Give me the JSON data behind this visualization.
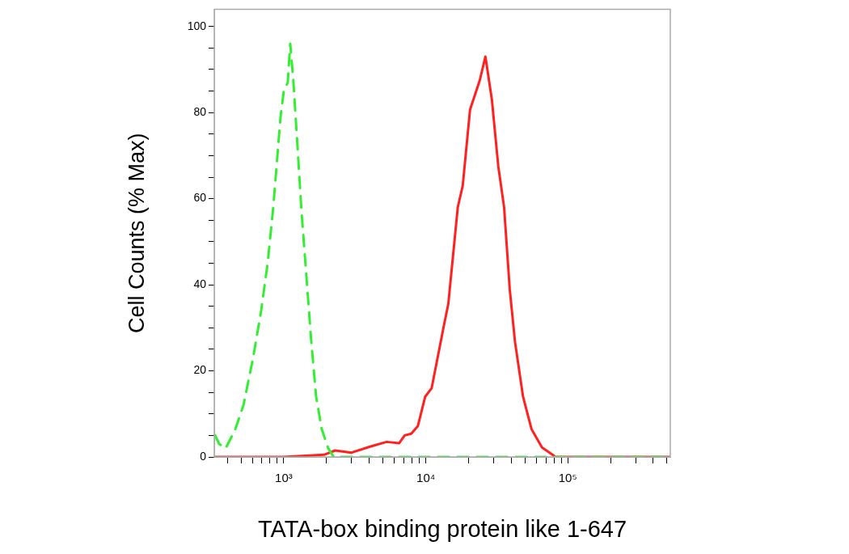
{
  "chart_data": {
    "type": "line",
    "xlabel": "TATA-box binding protein like 1-647",
    "ylabel": "Cell Counts (% Max)",
    "log": "x",
    "xlim": [
      324,
      527000
    ],
    "xticks": [
      {
        "value": 400,
        "label": null
      },
      {
        "value": 500,
        "label": null
      },
      {
        "value": 600,
        "label": null
      },
      {
        "value": 700,
        "label": null
      },
      {
        "value": 800,
        "label": null
      },
      {
        "value": 900,
        "label": null
      },
      {
        "value": 1000,
        "label": "10³"
      },
      {
        "value": 2000,
        "label": null
      },
      {
        "value": 3000,
        "label": null
      },
      {
        "value": 4000,
        "label": null
      },
      {
        "value": 5000,
        "label": null
      },
      {
        "value": 6000,
        "label": null
      },
      {
        "value": 7000,
        "label": null
      },
      {
        "value": 8000,
        "label": null
      },
      {
        "value": 9000,
        "label": null
      },
      {
        "value": 10000,
        "label": "10⁴"
      },
      {
        "value": 20000,
        "label": null
      },
      {
        "value": 30000,
        "label": null
      },
      {
        "value": 40000,
        "label": null
      },
      {
        "value": 50000,
        "label": null
      },
      {
        "value": 60000,
        "label": null
      },
      {
        "value": 70000,
        "label": null
      },
      {
        "value": 80000,
        "label": null
      },
      {
        "value": 90000,
        "label": null
      },
      {
        "value": 100000,
        "label": "10⁵"
      },
      {
        "value": 200000,
        "label": null
      },
      {
        "value": 300000,
        "label": null
      },
      {
        "value": 400000,
        "label": null
      },
      {
        "value": 500000,
        "label": null
      }
    ],
    "ylim": [
      0,
      104
    ],
    "yticks": [
      0,
      {
        "value": 5,
        "label": null
      },
      {
        "value": 10,
        "label": null
      },
      {
        "value": 15,
        "label": null
      },
      20,
      {
        "value": 25,
        "label": null
      },
      {
        "value": 30,
        "label": null
      },
      {
        "value": 35,
        "label": null
      },
      40,
      {
        "value": 45,
        "label": null
      },
      {
        "value": 50,
        "label": null
      },
      {
        "value": 55,
        "label": null
      },
      60,
      {
        "value": 65,
        "label": null
      },
      {
        "value": 70,
        "label": null
      },
      {
        "value": 75,
        "label": null
      },
      80,
      {
        "value": 85,
        "label": null
      },
      {
        "value": 90,
        "label": null
      },
      {
        "value": 95,
        "label": null
      },
      100
    ],
    "grid": false,
    "legend": false,
    "marker": "none",
    "series": [
      {
        "color": "#33ee33",
        "line_style": "dashed",
        "x": [
          329,
          351,
          390,
          456,
          520,
          608,
          693,
          770,
          843,
          912,
          949,
          1000,
          1067,
          1110,
          1170,
          1250,
          1333,
          1443,
          1560,
          1690,
          1850,
          2055,
          2250,
          500000
        ],
        "values": [
          5,
          3,
          2,
          6.5,
          12,
          23,
          34,
          45,
          58,
          72,
          79,
          85,
          87,
          96,
          87,
          72,
          57,
          42,
          27,
          14,
          6.5,
          2,
          0,
          0
        ]
      },
      {
        "color": "#ff2020",
        "line_style": "solid",
        "x": [
          329,
          1000,
          1920,
          2300,
          3000,
          4050,
          5300,
          6500,
          7100,
          7900,
          8800,
          9900,
          11000,
          13500,
          14400,
          16800,
          18200,
          20500,
          24000,
          26300,
          29200,
          32400,
          35600,
          39000,
          42500,
          48400,
          55500,
          65800,
          82200,
          527000
        ],
        "values": [
          0,
          0,
          0.5,
          1.5,
          1,
          2.4,
          3.5,
          3.2,
          5,
          5.4,
          7.2,
          14,
          16,
          31,
          35.5,
          58,
          63,
          80.7,
          87.5,
          93,
          83,
          67.5,
          58,
          39,
          26.7,
          14,
          6.5,
          2.2,
          0,
          0
        ]
      }
    ]
  }
}
